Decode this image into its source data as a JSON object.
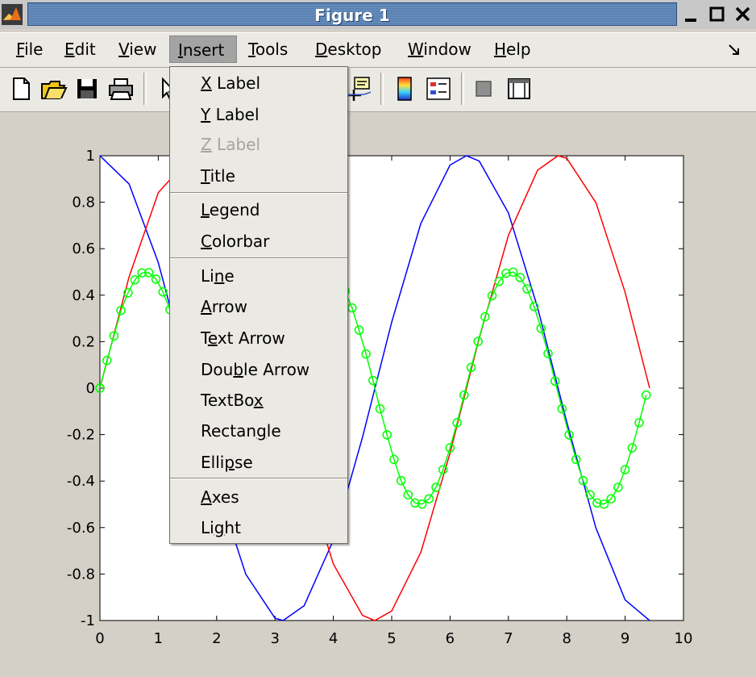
{
  "window": {
    "title": "Figure 1",
    "icon": "matlab-logo-icon",
    "controls": [
      "minimize-icon",
      "maximize-icon",
      "close-icon"
    ]
  },
  "menubar": {
    "items": [
      {
        "key": "F",
        "rest": "ile"
      },
      {
        "key": "E",
        "rest": "dit"
      },
      {
        "key": "V",
        "rest": "iew"
      },
      {
        "key": "I",
        "rest": "nsert"
      },
      {
        "key": "T",
        "rest": "ools"
      },
      {
        "key": "D",
        "rest": "esktop"
      },
      {
        "key": "W",
        "rest": "indow"
      },
      {
        "key": "H",
        "rest": "elp"
      }
    ],
    "active": "Insert",
    "dock_icon": "dock-arrow-icon"
  },
  "toolbar": {
    "icons": [
      "new-file-icon",
      "open-folder-icon",
      "save-icon",
      "print-icon",
      "select-arrow-icon",
      "data-cursor-icon",
      "colorbar-icon",
      "legend-icon",
      "hide-plot-tools-icon",
      "show-plot-tools-icon"
    ]
  },
  "insert_menu": {
    "items": [
      {
        "pre": "",
        "key": "X",
        "post": " Label",
        "enabled": true
      },
      {
        "pre": "",
        "key": "Y",
        "post": " Label",
        "enabled": true
      },
      {
        "pre": "",
        "key": "Z",
        "post": " Label",
        "enabled": false
      },
      {
        "pre": "",
        "key": "T",
        "post": "itle",
        "enabled": true
      },
      {
        "pre": "",
        "key": "L",
        "post": "egend",
        "enabled": true
      },
      {
        "pre": "",
        "key": "C",
        "post": "olorbar",
        "enabled": true
      },
      {
        "pre": "Li",
        "key": "n",
        "post": "e",
        "enabled": true
      },
      {
        "pre": "",
        "key": "A",
        "post": "rrow",
        "enabled": true
      },
      {
        "pre": "T",
        "key": "e",
        "post": "xt Arrow",
        "enabled": true
      },
      {
        "pre": "Dou",
        "key": "b",
        "post": "le Arrow",
        "enabled": true
      },
      {
        "pre": "TextBo",
        "key": "x",
        "post": "",
        "enabled": true
      },
      {
        "pre": "Rectan",
        "key": "g",
        "post": "le",
        "enabled": true
      },
      {
        "pre": "Elli",
        "key": "p",
        "post": "se",
        "enabled": true
      },
      {
        "pre": "",
        "key": "A",
        "post": "xes",
        "enabled": true
      },
      {
        "pre": "Li",
        "key": "g",
        "post": "ht",
        "enabled": true
      }
    ]
  },
  "chart_data": {
    "type": "line",
    "title": "",
    "xlabel": "",
    "ylabel": "",
    "xlim": [
      0,
      10
    ],
    "ylim": [
      -1,
      1
    ],
    "xticks": [
      "0",
      "1",
      "2",
      "3",
      "4",
      "5",
      "6",
      "7",
      "8",
      "9",
      "10"
    ],
    "yticks": [
      "1",
      "0.8",
      "0.6",
      "0.4",
      "0.2",
      "0",
      "-0.2",
      "-0.4",
      "-0.6",
      "-0.8",
      "-1"
    ],
    "grid": false,
    "series": [
      {
        "color": "#0000ff",
        "marker": "none",
        "x": [
          0,
          0.5,
          1,
          1.5,
          2,
          2.5,
          3,
          3.14,
          3.5,
          4,
          4.5,
          5,
          5.5,
          6,
          6.28,
          6.5,
          7,
          7.5,
          8,
          8.5,
          9,
          9.42
        ],
        "y": [
          1,
          0.878,
          0.54,
          0.071,
          -0.416,
          -0.801,
          -0.99,
          -1,
          -0.936,
          -0.654,
          -0.211,
          0.284,
          0.709,
          0.96,
          1,
          0.977,
          0.754,
          0.347,
          -0.146,
          -0.602,
          -0.911,
          -1
        ]
      },
      {
        "color": "#ff0000",
        "marker": "none",
        "x": [
          0,
          0.5,
          1,
          1.57,
          2,
          2.5,
          3,
          3.5,
          4,
          4.5,
          4.71,
          5,
          5.5,
          6,
          6.5,
          7,
          7.5,
          7.85,
          8,
          8.5,
          9,
          9.42
        ],
        "y": [
          0,
          0.479,
          0.841,
          1,
          0.909,
          0.598,
          0.141,
          -0.351,
          -0.757,
          -0.978,
          -1,
          -0.959,
          -0.706,
          -0.279,
          0.215,
          0.657,
          0.938,
          1,
          0.989,
          0.798,
          0.412,
          0
        ]
      },
      {
        "color": "#00ff00",
        "marker": "circle",
        "x": [
          0,
          0.12,
          0.24,
          0.36,
          0.48,
          0.6,
          0.72,
          0.84,
          0.96,
          1.08,
          1.2,
          1.32,
          1.44,
          1.56,
          1.68,
          1.8,
          1.92,
          2.04,
          2.16,
          2.28,
          2.4,
          2.52,
          2.64,
          2.76,
          2.88,
          3,
          3.12,
          3.24,
          3.36,
          3.48,
          3.6,
          3.72,
          3.84,
          3.96,
          4.08,
          4.2,
          4.32,
          4.44,
          4.56,
          4.68,
          4.8,
          4.92,
          5.04,
          5.16,
          5.28,
          5.4,
          5.52,
          5.64,
          5.76,
          5.88,
          6,
          6.12,
          6.24,
          6.36,
          6.48,
          6.6,
          6.72,
          6.84,
          6.96,
          7.08,
          7.2,
          7.32,
          7.44,
          7.56,
          7.68,
          7.8,
          7.92,
          8.04,
          8.16,
          8.28,
          8.4,
          8.52,
          8.64,
          8.76,
          8.88,
          9,
          9.12,
          9.24,
          9.36
        ],
        "y": [
          0,
          0.119,
          0.225,
          0.334,
          0.41,
          0.466,
          0.496,
          0.497,
          0.469,
          0.414,
          0.338,
          0.242,
          0.13,
          0.01,
          -0.11,
          -0.221,
          -0.325,
          -0.409,
          -0.466,
          -0.498,
          -0.498,
          -0.47,
          -0.416,
          -0.341,
          -0.249,
          -0.14,
          -0.021,
          0.1,
          0.215,
          0.319,
          0.405,
          0.463,
          0.495,
          0.499,
          0.474,
          0.418,
          0.345,
          0.25,
          0.147,
          0.033,
          -0.089,
          -0.201,
          -0.307,
          -0.398,
          -0.459,
          -0.494,
          -0.499,
          -0.476,
          -0.427,
          -0.351,
          -0.257,
          -0.149,
          -0.03,
          0.089,
          0.201,
          0.307,
          0.398,
          0.459,
          0.494,
          0.499,
          0.476,
          0.427,
          0.351,
          0.257,
          0.149,
          0.03,
          -0.089,
          -0.201,
          -0.307,
          -0.398,
          -0.459,
          -0.494,
          -0.499,
          -0.476,
          -0.427,
          -0.351,
          -0.257,
          -0.149,
          -0.03
        ]
      }
    ]
  }
}
